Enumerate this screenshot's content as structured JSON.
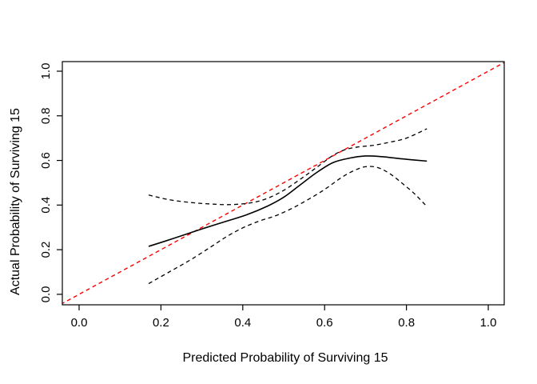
{
  "figure": {
    "background": "#ffffff",
    "frame_color": "#000000"
  },
  "chart_data": {
    "type": "line",
    "title": "",
    "xlabel": "Predicted Probability of Surviving 15",
    "ylabel": "Actual Probability of Surviving 15",
    "x_ticks": [
      "0.0",
      "0.2",
      "0.4",
      "0.6",
      "0.8",
      "1.0"
    ],
    "y_ticks": [
      "0.0",
      "0.2",
      "0.4",
      "0.6",
      "0.8",
      "1.0"
    ],
    "x_tick_values": [
      0.0,
      0.2,
      0.4,
      0.6,
      0.8,
      1.0
    ],
    "y_tick_values": [
      0.0,
      0.2,
      0.4,
      0.6,
      0.8,
      1.0
    ],
    "xlim": [
      -0.041,
      1.039
    ],
    "ylim": [
      -0.047,
      1.043
    ],
    "grid": false,
    "legend": false,
    "series": [
      {
        "id": "ideal-line",
        "name": "Ideal (y = x) reference line",
        "color": "#ff0000",
        "style": "dashed",
        "width": 1.4,
        "smooth": false,
        "points": [
          [
            -0.06,
            -0.06
          ],
          [
            1.06,
            1.06
          ]
        ]
      },
      {
        "id": "calibration-curve",
        "name": "Calibration curve",
        "color": "#000000",
        "style": "solid",
        "width": 1.6,
        "smooth": true,
        "points": [
          [
            0.17,
            0.215
          ],
          [
            0.23,
            0.25
          ],
          [
            0.29,
            0.287
          ],
          [
            0.35,
            0.322
          ],
          [
            0.41,
            0.357
          ],
          [
            0.46,
            0.395
          ],
          [
            0.5,
            0.435
          ],
          [
            0.54,
            0.49
          ],
          [
            0.58,
            0.545
          ],
          [
            0.62,
            0.59
          ],
          [
            0.66,
            0.61
          ],
          [
            0.7,
            0.62
          ],
          [
            0.74,
            0.617
          ],
          [
            0.79,
            0.607
          ],
          [
            0.85,
            0.597
          ]
        ]
      },
      {
        "id": "upper-confidence-band",
        "name": "Upper confidence band",
        "color": "#000000",
        "style": "dashed",
        "width": 1.3,
        "smooth": true,
        "points": [
          [
            0.17,
            0.445
          ],
          [
            0.22,
            0.424
          ],
          [
            0.27,
            0.412
          ],
          [
            0.32,
            0.405
          ],
          [
            0.37,
            0.402
          ],
          [
            0.42,
            0.41
          ],
          [
            0.46,
            0.43
          ],
          [
            0.5,
            0.466
          ],
          [
            0.54,
            0.515
          ],
          [
            0.58,
            0.568
          ],
          [
            0.62,
            0.622
          ],
          [
            0.65,
            0.648
          ],
          [
            0.68,
            0.66
          ],
          [
            0.72,
            0.668
          ],
          [
            0.76,
            0.682
          ],
          [
            0.8,
            0.7
          ],
          [
            0.85,
            0.742
          ]
        ]
      },
      {
        "id": "lower-confidence-band",
        "name": "Lower confidence band",
        "color": "#000000",
        "style": "dashed",
        "width": 1.3,
        "smooth": true,
        "points": [
          [
            0.17,
            0.048
          ],
          [
            0.22,
            0.1
          ],
          [
            0.27,
            0.152
          ],
          [
            0.32,
            0.21
          ],
          [
            0.36,
            0.258
          ],
          [
            0.4,
            0.298
          ],
          [
            0.44,
            0.328
          ],
          [
            0.48,
            0.352
          ],
          [
            0.52,
            0.385
          ],
          [
            0.56,
            0.425
          ],
          [
            0.6,
            0.47
          ],
          [
            0.64,
            0.522
          ],
          [
            0.67,
            0.553
          ],
          [
            0.7,
            0.572
          ],
          [
            0.73,
            0.568
          ],
          [
            0.76,
            0.54
          ],
          [
            0.79,
            0.497
          ],
          [
            0.82,
            0.45
          ],
          [
            0.85,
            0.393
          ]
        ]
      }
    ]
  }
}
